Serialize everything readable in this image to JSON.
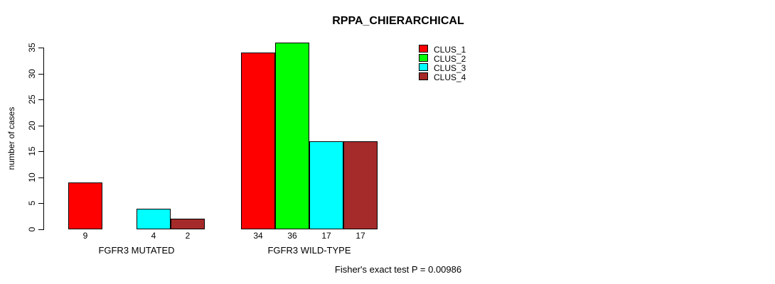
{
  "chart_data": {
    "type": "bar",
    "title": "RPPA_CHIERARCHICAL",
    "categories": [
      "FGFR3 MUTATED",
      "FGFR3 WILD-TYPE"
    ],
    "series": [
      {
        "name": "CLUS_1",
        "color": "#FF0000",
        "values": [
          9,
          34
        ]
      },
      {
        "name": "CLUS_2",
        "color": "#00FF00",
        "values": [
          0,
          36
        ]
      },
      {
        "name": "CLUS_3",
        "color": "#00FFFF",
        "values": [
          4,
          17
        ]
      },
      {
        "name": "CLUS_4",
        "color": "#A52A2A",
        "values": [
          2,
          17
        ]
      }
    ],
    "xlabel": "",
    "ylabel": "number of cases",
    "ylim": [
      0,
      35
    ],
    "yticks": [
      0,
      5,
      10,
      15,
      20,
      25,
      30,
      35
    ],
    "grid": false,
    "bar_borders": "#000000",
    "value_labels": "values shown under each bar, zero bars drawn without bar or label",
    "legend": {
      "position": "top-right",
      "entries": [
        "CLUS_1",
        "CLUS_2",
        "CLUS_3",
        "CLUS_4"
      ]
    },
    "annotation": "Fisher's exact test P = 0.00986"
  }
}
